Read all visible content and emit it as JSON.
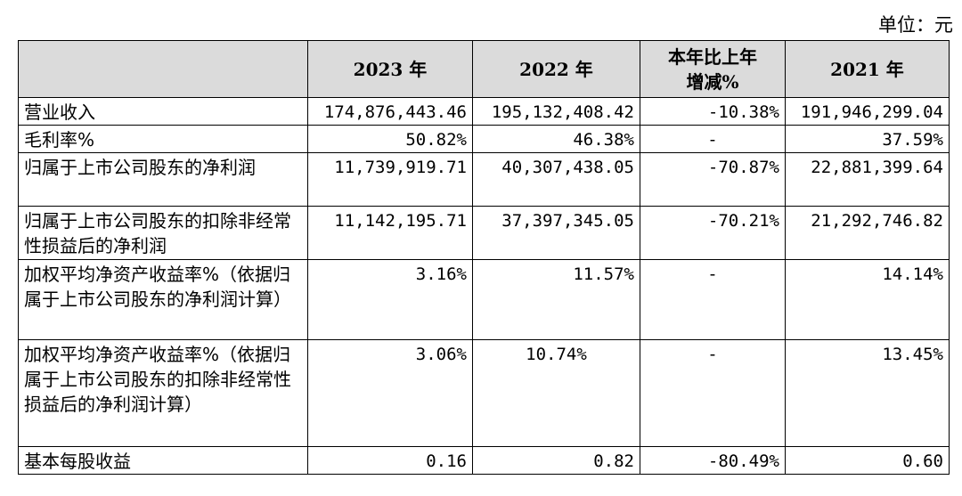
{
  "unit_label": "单位：元",
  "table": {
    "headers": [
      "",
      "2023 年",
      "2022 年",
      "本年比上年\n增减%",
      "2021 年"
    ],
    "rows": [
      {
        "label": "营业收入",
        "v2023": "174,876,443.46",
        "v2022": "195,132,408.42",
        "change": "-10.38%",
        "v2021": "191,946,299.04"
      },
      {
        "label": "毛利率%",
        "v2023": "50.82%",
        "v2022": "46.38%",
        "change": "-",
        "v2021": "37.59%"
      },
      {
        "label": "归属于上市公司股东的净利润",
        "v2023": "11,739,919.71",
        "v2022": "40,307,438.05",
        "change": "-70.87%",
        "v2021": "22,881,399.64"
      },
      {
        "label": "归属于上市公司股东的扣除非经常性损益后的净利润",
        "v2023": "11,142,195.71",
        "v2022": "37,397,345.05",
        "change": "-70.21%",
        "v2021": "21,292,746.82"
      },
      {
        "label": "加权平均净资产收益率%（依据归属于上市公司股东的净利润计算）",
        "v2023": "3.16%",
        "v2022": "11.57%",
        "change": "-",
        "v2021": "14.14%"
      },
      {
        "label": "加权平均净资产收益率%（依据归属于上市公司股东的扣除非经常性损益后的净利润计算）",
        "v2023": "3.06%",
        "v2022": "10.74%",
        "change": "-",
        "v2021": "13.45%"
      },
      {
        "label": "基本每股收益",
        "v2023": "0.16",
        "v2022": "0.82",
        "change": "-80.49%",
        "v2021": "0.60"
      }
    ]
  }
}
